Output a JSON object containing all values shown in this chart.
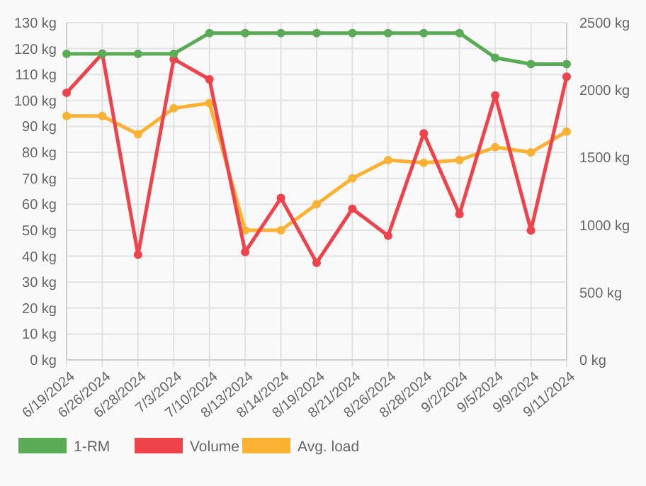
{
  "chart_data": {
    "type": "line",
    "categories": [
      "6/19/2024",
      "6/26/2024",
      "6/28/2024",
      "7/3/2024",
      "7/10/2024",
      "8/13/2024",
      "8/14/2024",
      "8/19/2024",
      "8/21/2024",
      "8/26/2024",
      "8/28/2024",
      "9/2/2024",
      "9/5/2024",
      "9/9/2024",
      "9/11/2024"
    ],
    "series": [
      {
        "name": "1-RM",
        "color": "#5aab55",
        "values": [
          118,
          118,
          118,
          118,
          126,
          126,
          126,
          126,
          126,
          126,
          126,
          126,
          116.5,
          114,
          114
        ]
      },
      {
        "name": "Volume",
        "color": "#f0424a",
        "axis": "y2",
        "values": [
          1980,
          2270,
          780,
          2230,
          2080,
          800,
          1200,
          720,
          1120,
          920,
          1680,
          1080,
          1960,
          960,
          2100
        ]
      },
      {
        "name": "Avg. load",
        "color": "#fbb132",
        "values": [
          94,
          94,
          87,
          97,
          99,
          50,
          50,
          60,
          70,
          77,
          76,
          77,
          82,
          80,
          88
        ]
      }
    ],
    "ylim": [
      0,
      130
    ],
    "yticks": [
      {
        "value": 0,
        "label": "0 kg"
      },
      {
        "value": 10,
        "label": "10 kg"
      },
      {
        "value": 20,
        "label": "20 kg"
      },
      {
        "value": 30,
        "label": "30 kg"
      },
      {
        "value": 40,
        "label": "40 kg"
      },
      {
        "value": 50,
        "label": "50 kg"
      },
      {
        "value": 60,
        "label": "60 kg"
      },
      {
        "value": 70,
        "label": "70 kg"
      },
      {
        "value": 80,
        "label": "80 kg"
      },
      {
        "value": 90,
        "label": "90 kg"
      },
      {
        "value": 100,
        "label": "100 kg"
      },
      {
        "value": 110,
        "label": "110 kg"
      },
      {
        "value": 120,
        "label": "120 kg"
      },
      {
        "value": 130,
        "label": "130 kg"
      }
    ],
    "y2lim": [
      0,
      2500
    ],
    "y2ticks": [
      {
        "value": 0,
        "label": "0 kg"
      },
      {
        "value": 500,
        "label": "500 kg"
      },
      {
        "value": 1000,
        "label": "1000 kg"
      },
      {
        "value": 1500,
        "label": "1500 kg"
      },
      {
        "value": 2000,
        "label": "2000 kg"
      },
      {
        "value": 2500,
        "label": "2500 kg"
      }
    ],
    "grid": true,
    "legend": "bottom left",
    "marker": "circle",
    "line_style": "solid"
  }
}
